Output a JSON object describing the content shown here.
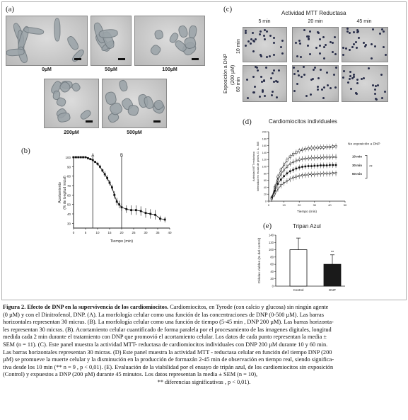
{
  "panel_a": {
    "letter": "(a)",
    "labels": [
      "0µM",
      "50µM",
      "100µM",
      "200µM",
      "500µM"
    ]
  },
  "panel_b": {
    "letter": "(b)",
    "ylabel_line1": "Acortamiento",
    "ylabel_line2": "(% de longitud inicial)",
    "xlabel": "Tiempo (min)",
    "marker_a": "A",
    "marker_b": "B"
  },
  "panel_c": {
    "letter": "(c)",
    "title": "Actividad MTT Reductasa",
    "times": [
      "5 min",
      "20 min",
      "45 min"
    ],
    "side_label_line1": "Exposición a DNP",
    "side_label_line2": "(200 µM)",
    "rows": [
      "10 min",
      "60 min"
    ]
  },
  "panel_d": {
    "letter": "(d)",
    "title": "Cardiomiocitos individuales",
    "ylabel_line1": "Actividad MTT reductasa",
    "ylabel_line2": "Intensidad en escala de grises, D. A.. 565",
    "xlabel": "Tiempo (min)",
    "series_labels": [
      "No exposición a DNP",
      "10 min",
      "30 min",
      "60 min"
    ],
    "significance": "**"
  },
  "panel_e": {
    "letter": "(e)",
    "title": "Tripan Azul",
    "ylabel": "Células viables (% del control)",
    "significance": "**"
  },
  "chart_data": [
    {
      "type": "line",
      "panel": "b",
      "xlabel": "Tiempo (min)",
      "ylabel": "Acortamiento (% de longitud inicial)",
      "xlim": [
        0,
        40
      ],
      "ylim": [
        25,
        100
      ],
      "x_ticks": [
        0,
        5,
        10,
        15,
        20,
        25,
        30,
        35,
        40
      ],
      "y_ticks": [
        100,
        90,
        80,
        70,
        60,
        50,
        40,
        30
      ],
      "vlines": [
        {
          "label": "A",
          "x": 8
        },
        {
          "label": "B",
          "x": 20
        }
      ],
      "series": [
        {
          "x": [
            0,
            1,
            2,
            3,
            4,
            5,
            6,
            7,
            8,
            9,
            10,
            11,
            12,
            13,
            14,
            15,
            16,
            17,
            18,
            19,
            20,
            22,
            24,
            26,
            28,
            30,
            32,
            34,
            36,
            38
          ],
          "y": [
            100,
            100,
            100,
            100,
            100,
            100,
            99,
            98,
            97,
            95,
            93,
            90,
            86,
            82,
            78,
            73,
            68,
            60,
            53,
            50,
            47,
            45,
            44,
            44,
            43,
            41,
            40,
            39,
            35,
            34
          ],
          "err": [
            0,
            0,
            0,
            0,
            0,
            0,
            1,
            1,
            1,
            1,
            2,
            2,
            2,
            3,
            3,
            3,
            3,
            4,
            4,
            4,
            4,
            4,
            5,
            5,
            5,
            5,
            5,
            5,
            3,
            3
          ]
        }
      ]
    },
    {
      "type": "line",
      "panel": "d",
      "title": "Cardiomiocitos individuales",
      "xlabel": "Tiempo (min)",
      "ylabel": "Actividad MTT reductasa",
      "xlim": [
        0,
        50
      ],
      "ylim": [
        0,
        200
      ],
      "x_ticks": [
        0,
        10,
        20,
        30,
        40,
        50
      ],
      "y_ticks": [
        0,
        20,
        40,
        60,
        80,
        100,
        120,
        140,
        160,
        180,
        200
      ],
      "x": [
        2,
        4,
        6,
        8,
        10,
        12,
        14,
        16,
        18,
        20,
        22,
        24,
        26,
        28,
        30,
        32,
        34,
        36,
        38,
        40,
        42,
        44
      ],
      "series": [
        {
          "name": "No exposición a DNP",
          "values": [
            10,
            40,
            70,
            90,
            105,
            118,
            128,
            135,
            140,
            145,
            148,
            150,
            152,
            153,
            153,
            154,
            155,
            155,
            156,
            156,
            157,
            158
          ]
        },
        {
          "name": "10 min",
          "values": [
            8,
            35,
            60,
            78,
            90,
            100,
            108,
            113,
            117,
            120,
            122,
            123,
            124,
            125,
            125,
            126,
            126,
            127,
            127,
            127,
            128,
            128
          ]
        },
        {
          "name": "30 min",
          "values": [
            8,
            30,
            50,
            62,
            72,
            80,
            86,
            90,
            94,
            97,
            99,
            100,
            101,
            101,
            102,
            102,
            103,
            103,
            103,
            104,
            104,
            104
          ]
        },
        {
          "name": "60 min",
          "values": [
            6,
            20,
            35,
            45,
            52,
            58,
            63,
            67,
            70,
            72,
            74,
            75,
            76,
            77,
            77,
            78,
            78,
            79,
            79,
            79,
            80,
            80
          ]
        }
      ]
    },
    {
      "type": "bar",
      "panel": "e",
      "title": "Tripan Azul",
      "ylabel": "Células viables (% del control)",
      "categories": [
        "Control",
        "DNP"
      ],
      "values": [
        100,
        60
      ],
      "errors": [
        32,
        26
      ],
      "colors": [
        "#ffffff",
        "#1a1a1a"
      ],
      "ylim": [
        0,
        140
      ],
      "y_ticks": [
        0,
        20,
        40,
        60,
        80,
        100,
        120,
        140
      ]
    }
  ],
  "caption": {
    "title": "Figura 2. Efecto de DNP en la supervivencia de los cardiomiocitos.",
    "lines": [
      " Cardiomiocitos, en Tyrode (con calcio y glucosa) sin ningún agente",
      "(0 µM) y con el Dinitrofenol, DNP. (A). La morfología celular como una función de las concentraciones de DNP (0-500 µM). Las barras",
      "horizontales representan 30 micras. (B). La morfología celular como una función de tiempo (5-45 min , DNP 200 µM). Las barras horizonta-",
      "les representan 30 micras. (B). Acortamiento celular cuantificado de forma paralela por el procesamiento de las imagenes digitales, longitud",
      "medida cada 2 min durante el tratamiento con DNP que promovió el acortamiento celular. Los datos de cada punto representan la media ±",
      "SEM (n = 11). (C). Este panel muestra la actividad MTT- reductasa de cardiomiocitos individuales con DNP 200 µM durante 10 y 60 min.",
      "Las barras horizontales representan 30 micras. (D) Este panel muestra la actividad MTT - reductasa celular en función del tiempo DNP (200",
      "µM) se promueve la muerte celular y la disminución en la producción de formazán 2-45 min de observación en tiempo real, siendo significa-",
      "tiva desde los 10 min (** n = 9 , p < 0,01). (E). Evaluación de la viabilidad por el ensayo de tripán azul, de los cardiomiocitos sin exposición",
      "(Control) y expuestos a DNP (200 µM) durante 45 minutos. Los datos representan la media ± SEM (n = 10),"
    ],
    "last_line": "** diferencias significativas , p < 0,01)."
  }
}
